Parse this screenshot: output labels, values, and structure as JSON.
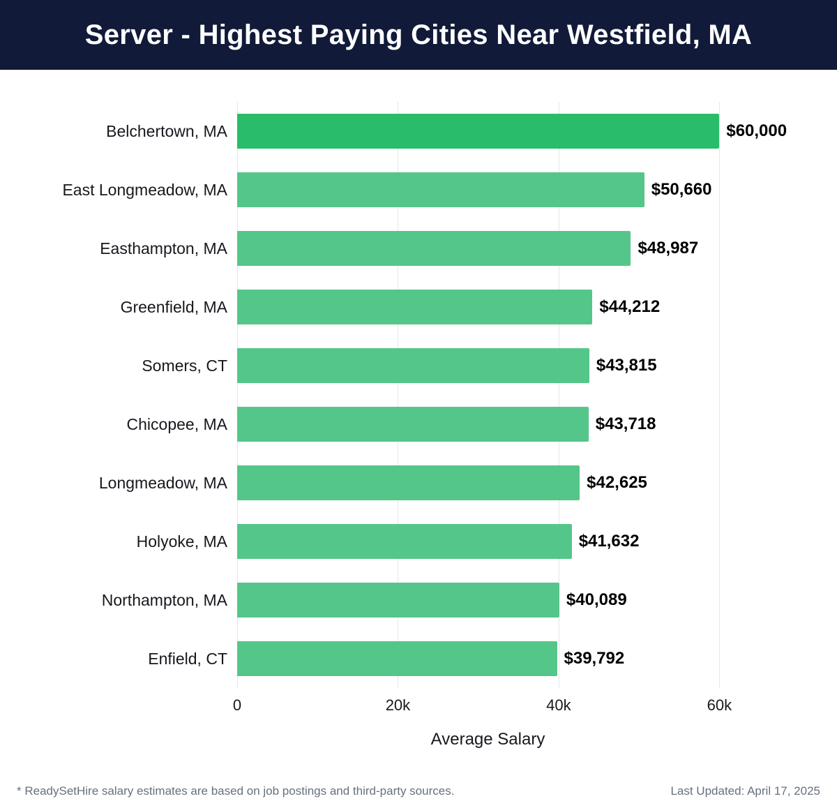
{
  "title": "Server - Highest Paying Cities Near Westfield, MA",
  "chart_data": {
    "type": "bar",
    "orientation": "horizontal",
    "title": "Server - Highest Paying Cities Near Westfield, MA",
    "categories": [
      "Belchertown, MA",
      "East Longmeadow, MA",
      "Easthampton, MA",
      "Greenfield, MA",
      "Somers, CT",
      "Chicopee, MA",
      "Longmeadow, MA",
      "Holyoke, MA",
      "Northampton, MA",
      "Enfield, CT"
    ],
    "values": [
      60000,
      50660,
      48987,
      44212,
      43815,
      43718,
      42625,
      41632,
      40089,
      39792
    ],
    "value_labels": [
      "$60,000",
      "$50,660",
      "$48,987",
      "$44,212",
      "$43,815",
      "$43,718",
      "$42,625",
      "$41,632",
      "$40,089",
      "$39,792"
    ],
    "xlabel": "Average Salary",
    "ylabel": "",
    "xlim": [
      0,
      62400
    ],
    "xticks": [
      {
        "value": 0,
        "label": "0"
      },
      {
        "value": 20000,
        "label": "20k"
      },
      {
        "value": 40000,
        "label": "40k"
      },
      {
        "value": 60000,
        "label": "60k"
      }
    ],
    "grid": "vertical",
    "legend": "none",
    "colors": {
      "bar_highlight": "#29bd6b",
      "bar_default": "#55c689",
      "header_background": "#111a38",
      "header_text": "#ffffff",
      "gridline": "#e3e6eb",
      "value_text": "#000000"
    }
  },
  "footer": {
    "note": "* ReadySetHire salary estimates are based on job postings and third-party sources.",
    "last_updated": "Last Updated: April 17, 2025"
  }
}
